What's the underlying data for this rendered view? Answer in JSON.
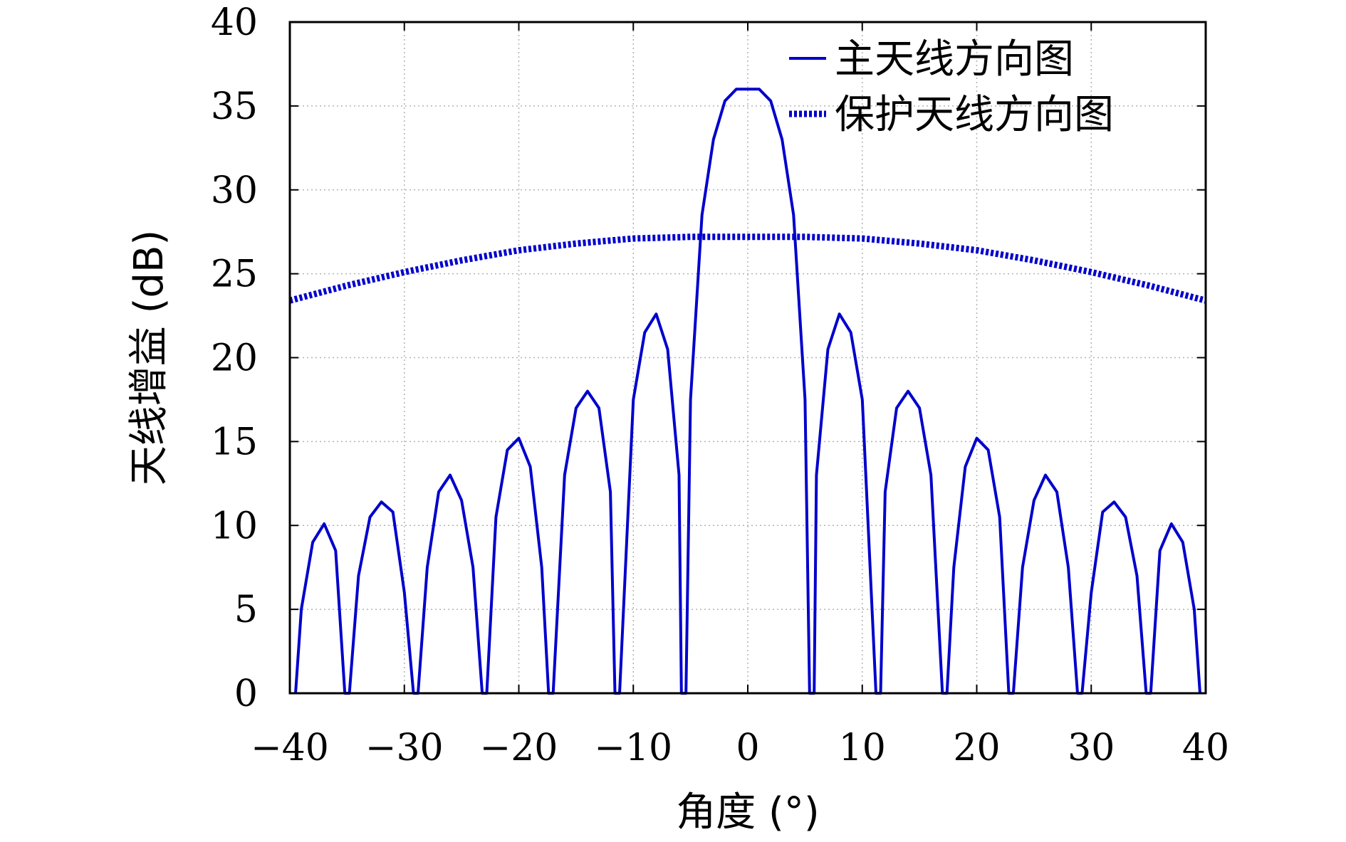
{
  "chart_data": {
    "type": "line",
    "xlabel": "角度 (°)",
    "ylabel": "天线增益 (dB)",
    "xlim": [
      -40,
      40
    ],
    "ylim": [
      0,
      40
    ],
    "xticks": [
      -40,
      -30,
      -20,
      -10,
      0,
      10,
      20,
      30,
      40
    ],
    "xtick_labels": [
      "−40",
      "−30",
      "−20",
      "−10",
      "0",
      "10",
      "20",
      "30",
      "40"
    ],
    "yticks": [
      0,
      5,
      10,
      15,
      20,
      25,
      30,
      35,
      40
    ],
    "ytick_labels": [
      "0",
      "5",
      "10",
      "15",
      "20",
      "25",
      "30",
      "35",
      "40"
    ],
    "grid": true,
    "legend_position": "top-right",
    "series": [
      {
        "name": "主天线方向图",
        "color": "#0000cc",
        "style": "solid",
        "x": [
          -39.5,
          -39.0,
          -38.0,
          -37.0,
          -36.0,
          -35.2,
          -34.8,
          -34.0,
          -33.0,
          -32.0,
          -31.0,
          -30.0,
          -29.2,
          -28.8,
          -28.0,
          -27.0,
          -26.0,
          -25.0,
          -24.0,
          -23.2,
          -22.8,
          -22.0,
          -21.0,
          -20.0,
          -19.0,
          -18.0,
          -17.4,
          -17.0,
          -16.0,
          -15.0,
          -14.0,
          -13.0,
          -12.0,
          -11.6,
          -11.2,
          -10.0,
          -9.0,
          -8.0,
          -7.0,
          -6.0,
          -5.8,
          -5.4,
          -5.0,
          -4.0,
          -3.0,
          -2.0,
          -1.0,
          0,
          1.0,
          2.0,
          3.0,
          4.0,
          5.0,
          5.4,
          5.8,
          6.0,
          7.0,
          8.0,
          9.0,
          10.0,
          11.2,
          11.6,
          12.0,
          13.0,
          14.0,
          15.0,
          16.0,
          17.0,
          17.4,
          18.0,
          19.0,
          20.0,
          21.0,
          22.0,
          22.8,
          23.2,
          24.0,
          25.0,
          26.0,
          27.0,
          28.0,
          28.8,
          29.2,
          30.0,
          31.0,
          32.0,
          33.0,
          34.0,
          34.8,
          35.2,
          36.0,
          37.0,
          38.0,
          39.0,
          39.5
        ],
        "y": [
          0,
          5,
          9,
          10.1,
          8.5,
          0,
          0,
          7,
          10.5,
          11.4,
          10.8,
          6,
          0,
          0,
          7.5,
          12,
          13,
          11.5,
          7.5,
          0,
          0,
          10.5,
          14.5,
          15.2,
          13.5,
          7.5,
          0,
          0,
          13,
          17,
          18,
          17,
          12,
          0,
          0,
          17.5,
          21.5,
          22.6,
          20.5,
          13,
          0,
          0,
          17.5,
          28.5,
          33,
          35.3,
          36,
          36,
          36,
          35.3,
          33,
          28.5,
          17.5,
          0,
          0,
          13,
          20.5,
          22.6,
          21.5,
          17.5,
          0,
          0,
          12,
          17,
          18,
          17,
          13,
          0,
          0,
          7.5,
          13.5,
          15.2,
          14.5,
          10.5,
          0,
          0,
          7.5,
          11.5,
          13,
          12,
          7.5,
          0,
          0,
          6,
          10.8,
          11.4,
          10.5,
          7,
          0,
          0,
          8.5,
          10.1,
          9,
          5,
          0
        ]
      },
      {
        "name": "保护天线方向图",
        "color": "#0000cc",
        "style": "dotted",
        "x": [
          -40,
          -35,
          -30,
          -25,
          -20,
          -15,
          -10,
          -5,
          0,
          5,
          10,
          15,
          20,
          25,
          30,
          35,
          40
        ],
        "y": [
          23.4,
          24.3,
          25.1,
          25.8,
          26.4,
          26.8,
          27.1,
          27.2,
          27.2,
          27.2,
          27.1,
          26.8,
          26.4,
          25.8,
          25.1,
          24.3,
          23.4
        ]
      }
    ]
  }
}
